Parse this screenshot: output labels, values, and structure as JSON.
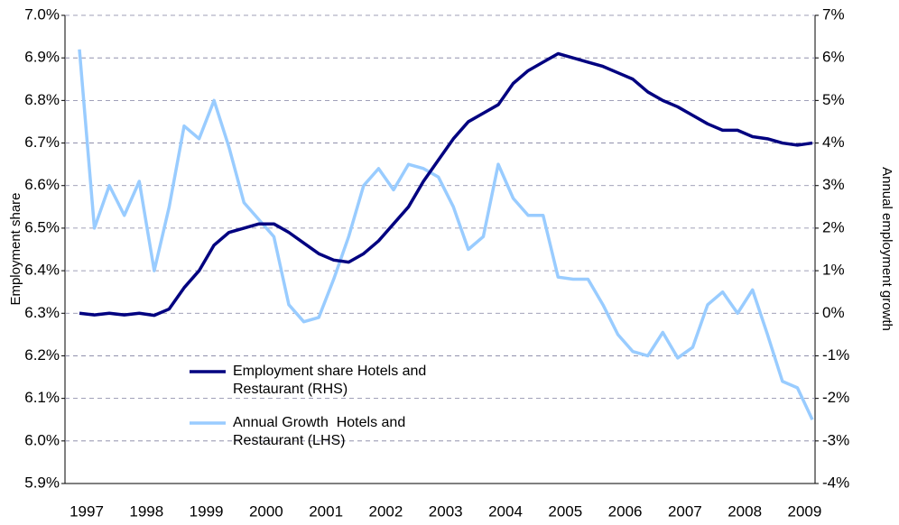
{
  "chart_data": {
    "type": "line",
    "y_label": "Employment share",
    "y2_label": "Annual employment growth",
    "categories": [
      "1997",
      null,
      null,
      null,
      "1998",
      null,
      null,
      null,
      "1999",
      null,
      null,
      null,
      "2000",
      null,
      null,
      null,
      "2001",
      null,
      null,
      null,
      "2002",
      null,
      null,
      null,
      "2003",
      null,
      null,
      null,
      "2004",
      null,
      null,
      null,
      "2005",
      null,
      null,
      null,
      "2006",
      null,
      null,
      null,
      "2007",
      null,
      null,
      null,
      "2008",
      null,
      null,
      null,
      "2009",
      null
    ],
    "series": [
      {
        "name": "Employment share Hotels and Restaurant (RHS)",
        "color": "#000080",
        "values": [
          6.3,
          6.296,
          6.3,
          6.296,
          6.3,
          6.295,
          6.31,
          6.36,
          6.4,
          6.46,
          6.49,
          6.5,
          6.51,
          6.51,
          6.49,
          6.465,
          6.44,
          6.425,
          6.42,
          6.44,
          6.47,
          6.51,
          6.55,
          6.61,
          6.66,
          6.71,
          6.75,
          6.77,
          6.79,
          6.84,
          6.87,
          6.89,
          6.91,
          6.9,
          6.89,
          6.88,
          6.865,
          6.85,
          6.82,
          6.8,
          6.785,
          6.765,
          6.745,
          6.73,
          6.73,
          6.715,
          6.71,
          6.7,
          6.695,
          6.7
        ]
      },
      {
        "name": "Annual Growth  Hotels and Restaurant (LHS)",
        "color": "#99ccff",
        "axis": "y2",
        "values": [
          6.2,
          2.0,
          3.0,
          2.3,
          3.1,
          1.0,
          2.5,
          4.4,
          4.1,
          5.0,
          3.9,
          2.6,
          2.2,
          1.8,
          0.2,
          -0.2,
          -0.1,
          0.8,
          1.8,
          3.0,
          3.4,
          2.9,
          3.5,
          3.4,
          3.2,
          2.5,
          1.5,
          1.8,
          3.5,
          2.7,
          2.3,
          2.3,
          0.85,
          0.8,
          0.8,
          0.2,
          -0.5,
          -0.9,
          -1.0,
          -0.45,
          -1.05,
          -0.8,
          0.2,
          0.5,
          0.0,
          0.55,
          -0.5,
          -1.6,
          -1.75,
          -2.5
        ]
      }
    ],
    "ylim": [
      5.9,
      7.0
    ],
    "yticks": [
      {
        "value": 5.9,
        "label": "5.9%"
      },
      {
        "value": 6.0,
        "label": "6.0%"
      },
      {
        "value": 6.1,
        "label": "6.1%"
      },
      {
        "value": 6.2,
        "label": "6.2%"
      },
      {
        "value": 6.3,
        "label": "6.3%"
      },
      {
        "value": 6.4,
        "label": "6.4%"
      },
      {
        "value": 6.5,
        "label": "6.5%"
      },
      {
        "value": 6.6,
        "label": "6.6%"
      },
      {
        "value": 6.7,
        "label": "6.7%"
      },
      {
        "value": 6.8,
        "label": "6.8%"
      },
      {
        "value": 6.9,
        "label": "6.9%"
      },
      {
        "value": 7.0,
        "label": "7.0%"
      }
    ],
    "y2lim": [
      -4,
      7
    ],
    "y2ticks": [
      {
        "value": -4,
        "label": "-4%"
      },
      {
        "value": -3,
        "label": "-3%"
      },
      {
        "value": -2,
        "label": "-2%"
      },
      {
        "value": -1,
        "label": "-1%"
      },
      {
        "value": 0,
        "label": "0%"
      },
      {
        "value": 1,
        "label": "1%"
      },
      {
        "value": 2,
        "label": "2%"
      },
      {
        "value": 3,
        "label": "3%"
      },
      {
        "value": 4,
        "label": "4%"
      },
      {
        "value": 5,
        "label": "5%"
      },
      {
        "value": 6,
        "label": "6%"
      },
      {
        "value": 7,
        "label": "7%"
      }
    ],
    "grid": true
  }
}
